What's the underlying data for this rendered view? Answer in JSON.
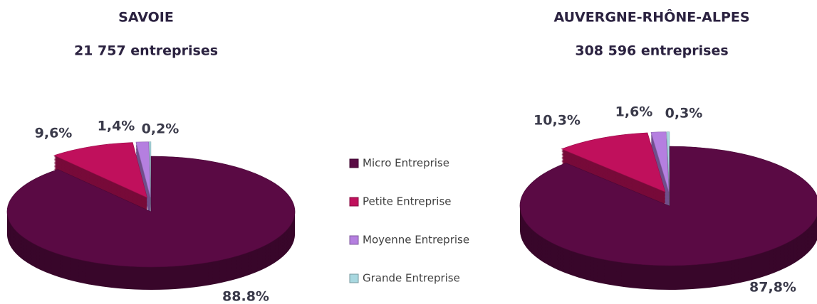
{
  "legend": {
    "categories": [
      "Micro Entreprise",
      "Petite Entreprise",
      "Moyenne Entreprise",
      "Grande Entreprise"
    ],
    "colors": [
      "#5a0a44",
      "#c0105c",
      "#b57fe0",
      "#a8d8e0"
    ]
  },
  "chart_data": [
    {
      "type": "pie",
      "title": "SAVOIE",
      "subtitle": "21 757 entreprises",
      "values": [
        88.8,
        9.6,
        1.4,
        0.2
      ],
      "value_labels": [
        "88.8%",
        "9,6%",
        "1,4%",
        "0,2%"
      ]
    },
    {
      "type": "pie",
      "title": "AUVERGNE-RHÔNE-ALPES",
      "subtitle": "308 596 entreprises",
      "values": [
        87.8,
        10.3,
        1.6,
        0.3
      ],
      "value_labels": [
        "87,8%",
        "10,3%",
        "1,6%",
        "0,3%"
      ]
    }
  ]
}
